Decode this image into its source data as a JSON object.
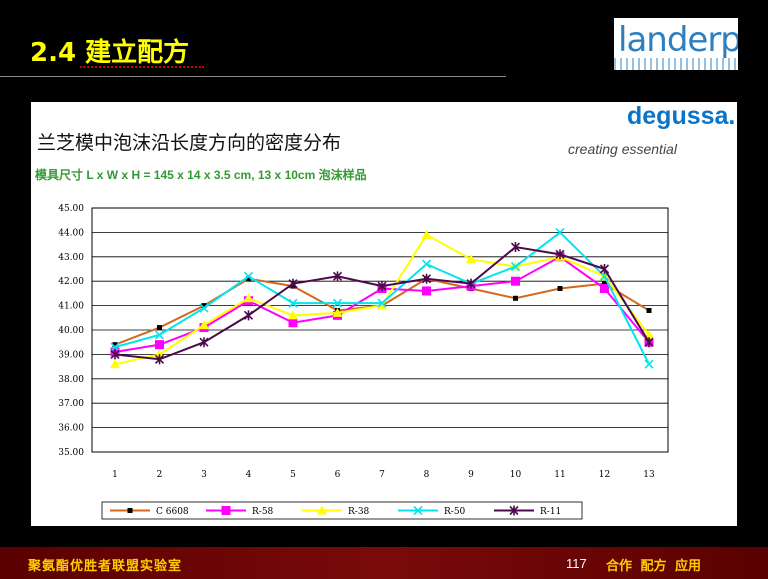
{
  "slide_title": "2.4 建立配方",
  "logo_text": "landerpu",
  "brand": "degussa.",
  "tagline": "creating essential",
  "footer": {
    "left_text": "聚氨酯优胜者联盟实验室",
    "page": "117",
    "right_text": "合作 配方 应用"
  },
  "colors": {
    "background": "#000000",
    "title": "#ffff00",
    "subtitle": "#339933",
    "brand": "#0a74c8"
  },
  "chart_data": {
    "type": "line",
    "title": "兰芝模中泡沫沿长度方向的密度分布",
    "subtitle": "模具尺寸 L x W x H = 145 x 14 x 3.5 cm, 13 x 10cm 泡沫样品",
    "xlabel": "",
    "ylabel": "",
    "x": [
      1,
      2,
      3,
      4,
      5,
      6,
      7,
      8,
      9,
      10,
      11,
      12,
      13
    ],
    "ylim": [
      35.0,
      45.0
    ],
    "yticks": [
      "35.00",
      "36.00",
      "37.00",
      "38.00",
      "39.00",
      "40.00",
      "41.00",
      "42.00",
      "43.00",
      "44.00",
      "45.00"
    ],
    "grid": true,
    "legend_position": "bottom",
    "series": [
      {
        "name": "C 6608",
        "color": "#d2691e",
        "marker": "square-small",
        "values": [
          39.4,
          40.1,
          41.0,
          42.1,
          41.8,
          40.8,
          41.0,
          42.1,
          41.7,
          41.3,
          41.7,
          41.9,
          40.8
        ]
      },
      {
        "name": "R-58",
        "color": "#ff00ff",
        "marker": "square",
        "values": [
          39.1,
          39.4,
          40.1,
          41.2,
          40.3,
          40.6,
          41.7,
          41.6,
          41.8,
          42.0,
          43.0,
          41.7,
          39.5
        ]
      },
      {
        "name": "R-38",
        "color": "#ffff00",
        "marker": "triangle",
        "values": [
          38.6,
          39.0,
          40.2,
          41.3,
          40.6,
          40.7,
          41.0,
          43.9,
          42.9,
          42.6,
          43.0,
          42.2,
          39.8
        ]
      },
      {
        "name": "R-50",
        "color": "#00e5ee",
        "marker": "x",
        "values": [
          39.3,
          39.8,
          40.9,
          42.2,
          41.1,
          41.1,
          41.1,
          42.7,
          41.9,
          42.6,
          44.0,
          42.2,
          38.6
        ]
      },
      {
        "name": "R-11",
        "color": "#4b0a4b",
        "marker": "star",
        "values": [
          39.0,
          38.8,
          39.5,
          40.6,
          41.9,
          42.2,
          41.8,
          42.1,
          41.9,
          43.4,
          43.1,
          42.5,
          39.5
        ]
      }
    ]
  }
}
